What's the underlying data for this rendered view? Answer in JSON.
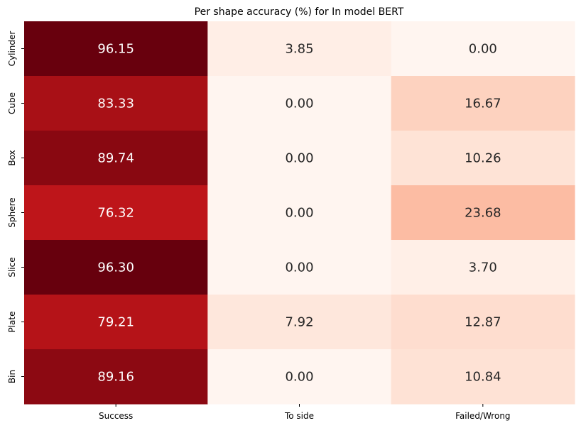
{
  "chart_data": {
    "type": "heatmap",
    "title": "Per shape accuracy (%) for In model BERT",
    "xlabel": "",
    "ylabel": "",
    "columns": [
      "Success",
      "To side",
      "Failed/Wrong"
    ],
    "rows": [
      "Cylinder",
      "Cube",
      "Box",
      "Sphere",
      "Slice",
      "Plate",
      "Bin"
    ],
    "values": [
      [
        96.15,
        3.85,
        0.0
      ],
      [
        83.33,
        0.0,
        16.67
      ],
      [
        89.74,
        0.0,
        10.26
      ],
      [
        76.32,
        0.0,
        23.68
      ],
      [
        96.3,
        0.0,
        3.7
      ],
      [
        79.21,
        7.92,
        12.87
      ],
      [
        89.16,
        0.0,
        10.84
      ]
    ],
    "value_format": "0.00",
    "colormap": "Reds",
    "vmin": 0,
    "vmax": 96.3,
    "colorbar": false,
    "grid": false
  }
}
